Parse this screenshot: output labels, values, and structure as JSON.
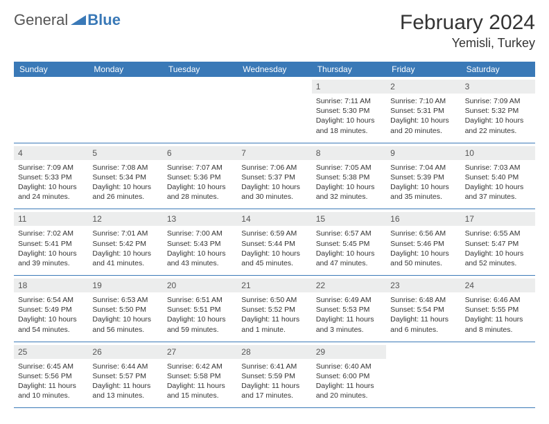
{
  "brand": {
    "part1": "General",
    "part2": "Blue"
  },
  "title": {
    "month": "February 2024",
    "location": "Yemisli, Turkey"
  },
  "colors": {
    "header_bg": "#3a79b7",
    "header_text": "#ffffff",
    "daynum_bg": "#eceded",
    "border": "#3a79b7",
    "text": "#333333"
  },
  "dayNames": [
    "Sunday",
    "Monday",
    "Tuesday",
    "Wednesday",
    "Thursday",
    "Friday",
    "Saturday"
  ],
  "weeks": [
    [
      null,
      null,
      null,
      null,
      {
        "n": "1",
        "sr": "7:11 AM",
        "ss": "5:30 PM",
        "dl": "10 hours and 18 minutes."
      },
      {
        "n": "2",
        "sr": "7:10 AM",
        "ss": "5:31 PM",
        "dl": "10 hours and 20 minutes."
      },
      {
        "n": "3",
        "sr": "7:09 AM",
        "ss": "5:32 PM",
        "dl": "10 hours and 22 minutes."
      }
    ],
    [
      {
        "n": "4",
        "sr": "7:09 AM",
        "ss": "5:33 PM",
        "dl": "10 hours and 24 minutes."
      },
      {
        "n": "5",
        "sr": "7:08 AM",
        "ss": "5:34 PM",
        "dl": "10 hours and 26 minutes."
      },
      {
        "n": "6",
        "sr": "7:07 AM",
        "ss": "5:36 PM",
        "dl": "10 hours and 28 minutes."
      },
      {
        "n": "7",
        "sr": "7:06 AM",
        "ss": "5:37 PM",
        "dl": "10 hours and 30 minutes."
      },
      {
        "n": "8",
        "sr": "7:05 AM",
        "ss": "5:38 PM",
        "dl": "10 hours and 32 minutes."
      },
      {
        "n": "9",
        "sr": "7:04 AM",
        "ss": "5:39 PM",
        "dl": "10 hours and 35 minutes."
      },
      {
        "n": "10",
        "sr": "7:03 AM",
        "ss": "5:40 PM",
        "dl": "10 hours and 37 minutes."
      }
    ],
    [
      {
        "n": "11",
        "sr": "7:02 AM",
        "ss": "5:41 PM",
        "dl": "10 hours and 39 minutes."
      },
      {
        "n": "12",
        "sr": "7:01 AM",
        "ss": "5:42 PM",
        "dl": "10 hours and 41 minutes."
      },
      {
        "n": "13",
        "sr": "7:00 AM",
        "ss": "5:43 PM",
        "dl": "10 hours and 43 minutes."
      },
      {
        "n": "14",
        "sr": "6:59 AM",
        "ss": "5:44 PM",
        "dl": "10 hours and 45 minutes."
      },
      {
        "n": "15",
        "sr": "6:57 AM",
        "ss": "5:45 PM",
        "dl": "10 hours and 47 minutes."
      },
      {
        "n": "16",
        "sr": "6:56 AM",
        "ss": "5:46 PM",
        "dl": "10 hours and 50 minutes."
      },
      {
        "n": "17",
        "sr": "6:55 AM",
        "ss": "5:47 PM",
        "dl": "10 hours and 52 minutes."
      }
    ],
    [
      {
        "n": "18",
        "sr": "6:54 AM",
        "ss": "5:49 PM",
        "dl": "10 hours and 54 minutes."
      },
      {
        "n": "19",
        "sr": "6:53 AM",
        "ss": "5:50 PM",
        "dl": "10 hours and 56 minutes."
      },
      {
        "n": "20",
        "sr": "6:51 AM",
        "ss": "5:51 PM",
        "dl": "10 hours and 59 minutes."
      },
      {
        "n": "21",
        "sr": "6:50 AM",
        "ss": "5:52 PM",
        "dl": "11 hours and 1 minute."
      },
      {
        "n": "22",
        "sr": "6:49 AM",
        "ss": "5:53 PM",
        "dl": "11 hours and 3 minutes."
      },
      {
        "n": "23",
        "sr": "6:48 AM",
        "ss": "5:54 PM",
        "dl": "11 hours and 6 minutes."
      },
      {
        "n": "24",
        "sr": "6:46 AM",
        "ss": "5:55 PM",
        "dl": "11 hours and 8 minutes."
      }
    ],
    [
      {
        "n": "25",
        "sr": "6:45 AM",
        "ss": "5:56 PM",
        "dl": "11 hours and 10 minutes."
      },
      {
        "n": "26",
        "sr": "6:44 AM",
        "ss": "5:57 PM",
        "dl": "11 hours and 13 minutes."
      },
      {
        "n": "27",
        "sr": "6:42 AM",
        "ss": "5:58 PM",
        "dl": "11 hours and 15 minutes."
      },
      {
        "n": "28",
        "sr": "6:41 AM",
        "ss": "5:59 PM",
        "dl": "11 hours and 17 minutes."
      },
      {
        "n": "29",
        "sr": "6:40 AM",
        "ss": "6:00 PM",
        "dl": "11 hours and 20 minutes."
      },
      null,
      null
    ]
  ],
  "labels": {
    "sunrise": "Sunrise: ",
    "sunset": "Sunset: ",
    "daylight": "Daylight: "
  }
}
